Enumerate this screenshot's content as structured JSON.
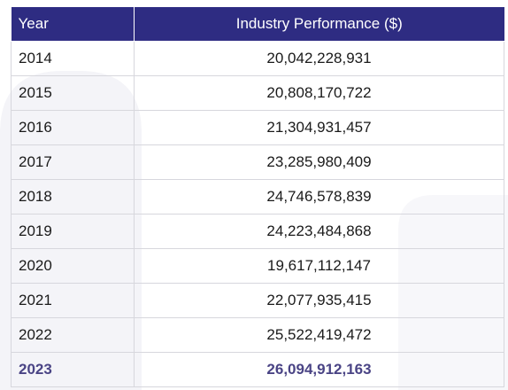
{
  "table": {
    "headers": [
      "Year",
      "Industry Performance ($)"
    ],
    "rows": [
      {
        "year": "2014",
        "value": "20,042,228,931"
      },
      {
        "year": "2015",
        "value": "20,808,170,722"
      },
      {
        "year": "2016",
        "value": "21,304,931,457"
      },
      {
        "year": "2017",
        "value": "23,285,980,409"
      },
      {
        "year": "2018",
        "value": "24,746,578,839"
      },
      {
        "year": "2019",
        "value": "24,223,484,868"
      },
      {
        "year": "2020",
        "value": "19,617,112,147"
      },
      {
        "year": "2021",
        "value": "22,077,935,415"
      },
      {
        "year": "2022",
        "value": "25,522,419,472"
      },
      {
        "year": "2023",
        "value": "26,094,912,163"
      }
    ]
  },
  "colors": {
    "header_bg": "#2e2c82",
    "header_text": "#ffffff",
    "highlight_text": "#4a4485",
    "border": "#d7d7dd"
  }
}
